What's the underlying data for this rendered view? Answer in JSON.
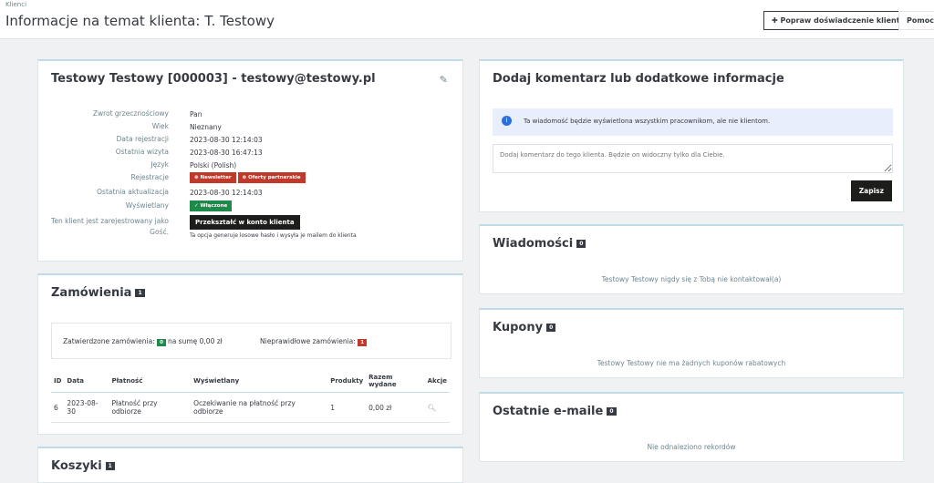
{
  "header": {
    "breadcrumb": "Klienci",
    "title": "Informacje na temat klienta: T. Testowy",
    "improve_button": "Popraw doświadczenie klienta",
    "help_button": "Pomoc"
  },
  "customer": {
    "title": "Testowy Testowy [000003] - testowy@testowy.pl",
    "fields": [
      {
        "label": "Zwrot grzecznościowy",
        "value": "Pan"
      },
      {
        "label": "Wiek",
        "value": "Nieznany"
      },
      {
        "label": "Data rejestracji",
        "value": "2023-08-30 12:14:03"
      },
      {
        "label": "Ostatnia wizyta",
        "value": "2023-08-30 16:47:13"
      },
      {
        "label": "Język",
        "value": "Polski (Polish)"
      },
      {
        "label": "Rejestracje",
        "value": ""
      },
      {
        "label": "Ostatnia aktualizacja",
        "value": "2023-08-30 12:14:03"
      },
      {
        "label": "Wyświetlany",
        "value": ""
      }
    ],
    "newsletter": "Newsletter",
    "partner_offers": "Oferty partnerskie",
    "enabled": "Włączone",
    "guest_label": "Ten klient jest zarejestrowany jako Gość.",
    "convert_button": "Przekształć w konto klienta",
    "convert_hint": "Ta opcja generuje losowe hasło i wysyła je mailem do klienta"
  },
  "orders": {
    "title": "Zamówienia",
    "count": "1",
    "valid_label": "Zatwierdzone zamówienia:",
    "valid_count": "0",
    "valid_sum": "na sumę 0,00 zł",
    "invalid_label": "Nieprawidłowe zamówienia:",
    "invalid_count": "1",
    "columns": [
      "ID",
      "Data",
      "Płatność",
      "Wyświetlany",
      "Produkty",
      "Razem wydane",
      "Akcje"
    ],
    "rows": [
      {
        "id": "6",
        "date": "2023-08-30",
        "payment": "Płatność przy odbiorze",
        "status": "Oczekiwanie na płatność przy odbiorze",
        "products": "1",
        "total": "0,00 zł"
      }
    ]
  },
  "carts": {
    "title": "Koszyki",
    "count": "1"
  },
  "comment": {
    "title": "Dodaj komentarz lub dodatkowe informacje",
    "info": "Ta wiadomość będzie wyświetlona wszystkim pracownikom, ale nie klientom.",
    "placeholder": "Dodaj komentarz do tego klienta. Będzie on widoczny tylko dla Ciebie.",
    "save": "Zapisz"
  },
  "messages": {
    "title": "Wiadomości",
    "count": "0",
    "empty": "Testowy Testowy nigdy się z Tobą nie kontaktował(a)"
  },
  "coupons": {
    "title": "Kupony",
    "count": "0",
    "empty": "Testowy Testowy nie ma żadnych kuponów rabatowych"
  },
  "emails": {
    "title": "Ostatnie e-maile",
    "count": "0",
    "empty": "Nie odnaleziono rekordów"
  },
  "colors": {
    "danger": "#c0392b",
    "success": "#1e8a4a",
    "info": "#25b9d7"
  }
}
